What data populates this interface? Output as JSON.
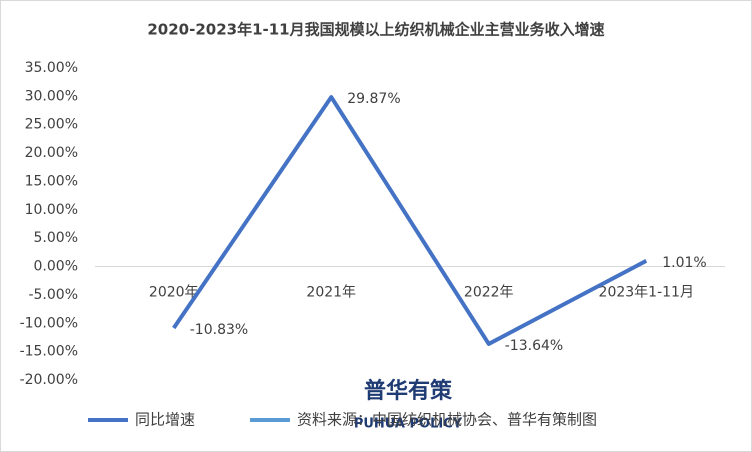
{
  "chart_data": {
    "type": "line",
    "title": "2020-2023年1-11月我国规模以上纺织机械企业主营业务收入增速",
    "categories": [
      "2020年",
      "2021年",
      "2022年",
      "2023年1-11月"
    ],
    "series": [
      {
        "name": "同比增速",
        "color": "#4472c4",
        "values": [
          -10.83,
          29.87,
          -13.64,
          1.01
        ],
        "value_labels": [
          "-10.83%",
          "29.87%",
          "-13.64%",
          "1.01%"
        ]
      },
      {
        "name": "资料来源：中国纺织机械协会、普华有策制图",
        "color": "#5b9bd5",
        "values": [
          null,
          null,
          null,
          null
        ]
      }
    ],
    "ylim": [
      -20,
      35
    ],
    "yticks": [
      {
        "value": -20,
        "label": "-20.00%"
      },
      {
        "value": -15,
        "label": "-15.00%"
      },
      {
        "value": -10,
        "label": "-10.00%"
      },
      {
        "value": -5,
        "label": "-5.00%"
      },
      {
        "value": 0,
        "label": "0.00%"
      },
      {
        "value": 5,
        "label": "5.00%"
      },
      {
        "value": 10,
        "label": "10.00%"
      },
      {
        "value": 15,
        "label": "15.00%"
      },
      {
        "value": 20,
        "label": "20.00%"
      },
      {
        "value": 25,
        "label": "25.00%"
      },
      {
        "value": 30,
        "label": "30.00%"
      },
      {
        "value": 35,
        "label": "35.00%"
      }
    ],
    "grid": false,
    "legend": "bottom",
    "watermark": {
      "title": "普华有策",
      "subtitle": "PUHUA POLICY"
    }
  }
}
